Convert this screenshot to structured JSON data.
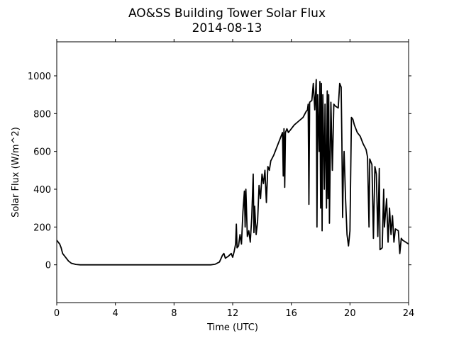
{
  "chart_data": {
    "type": "line",
    "title": "AO&SS Building Tower Solar Flux",
    "subtitle": "2014-08-13",
    "x_label": "Time (UTC)",
    "y_label": "Solar Flux (W/m^2)",
    "xlim": [
      0,
      24
    ],
    "xticks": [
      0,
      4,
      8,
      12,
      16,
      20,
      24
    ],
    "ylim": [
      -200,
      1180
    ],
    "yticks": [
      0,
      200,
      400,
      600,
      800,
      1000
    ],
    "x": [
      0,
      0.2,
      0.3,
      0.4,
      0.6,
      0.8,
      1.0,
      1.3,
      1.6,
      2,
      4,
      6,
      8,
      10,
      10.5,
      10.8,
      11.1,
      11.3,
      11.4,
      11.5,
      11.7,
      11.9,
      12.0,
      12.1,
      12.2,
      12.25,
      12.3,
      12.4,
      12.5,
      12.6,
      12.7,
      12.8,
      12.85,
      12.9,
      13.0,
      13.1,
      13.2,
      13.3,
      13.4,
      13.45,
      13.5,
      13.6,
      13.7,
      13.8,
      13.9,
      14.0,
      14.1,
      14.2,
      14.3,
      14.4,
      14.5,
      14.6,
      14.8,
      15.0,
      15.2,
      15.4,
      15.45,
      15.5,
      15.55,
      15.6,
      15.7,
      15.8,
      16.0,
      16.2,
      16.5,
      16.8,
      17.0,
      17.1,
      17.15,
      17.2,
      17.25,
      17.4,
      17.5,
      17.6,
      17.7,
      17.75,
      17.8,
      17.9,
      17.95,
      18.0,
      18.05,
      18.1,
      18.15,
      18.25,
      18.3,
      18.4,
      18.45,
      18.5,
      18.55,
      18.6,
      18.7,
      18.8,
      18.9,
      19.0,
      19.2,
      19.3,
      19.4,
      19.45,
      19.5,
      19.55,
      19.6,
      19.7,
      19.8,
      19.9,
      20.0,
      20.1,
      20.2,
      20.3,
      20.5,
      20.7,
      20.9,
      21.1,
      21.2,
      21.3,
      21.35,
      21.5,
      21.6,
      21.7,
      21.8,
      21.9,
      22.0,
      22.05,
      22.2,
      22.3,
      22.35,
      22.5,
      22.6,
      22.7,
      22.8,
      22.9,
      23.0,
      23.1,
      23.3,
      23.4,
      23.5,
      23.6,
      23.8,
      24.0
    ],
    "series": [
      {
        "color": "#000000",
        "values": [
          130,
          110,
          90,
          60,
          40,
          20,
          8,
          2,
          0,
          0,
          0,
          0,
          0,
          0,
          0,
          3,
          15,
          50,
          60,
          35,
          45,
          60,
          40,
          70,
          110,
          215,
          90,
          100,
          160,
          110,
          280,
          390,
          200,
          400,
          150,
          180,
          120,
          250,
          480,
          170,
          310,
          160,
          230,
          420,
          350,
          480,
          430,
          500,
          330,
          520,
          500,
          550,
          580,
          620,
          660,
          700,
          470,
          720,
          410,
          700,
          720,
          700,
          720,
          740,
          760,
          780,
          810,
          820,
          850,
          320,
          860,
          870,
          960,
          820,
          980,
          200,
          900,
          600,
          970,
          300,
          960,
          180,
          900,
          400,
          850,
          300,
          920,
          350,
          900,
          220,
          860,
          500,
          850,
          840,
          830,
          960,
          940,
          650,
          250,
          500,
          600,
          350,
          160,
          100,
          180,
          780,
          770,
          740,
          700,
          680,
          640,
          610,
          570,
          200,
          560,
          530,
          140,
          520,
          480,
          150,
          510,
          80,
          90,
          400,
          200,
          350,
          120,
          300,
          160,
          260,
          120,
          190,
          180,
          60,
          140,
          130,
          120,
          110
        ]
      }
    ]
  }
}
